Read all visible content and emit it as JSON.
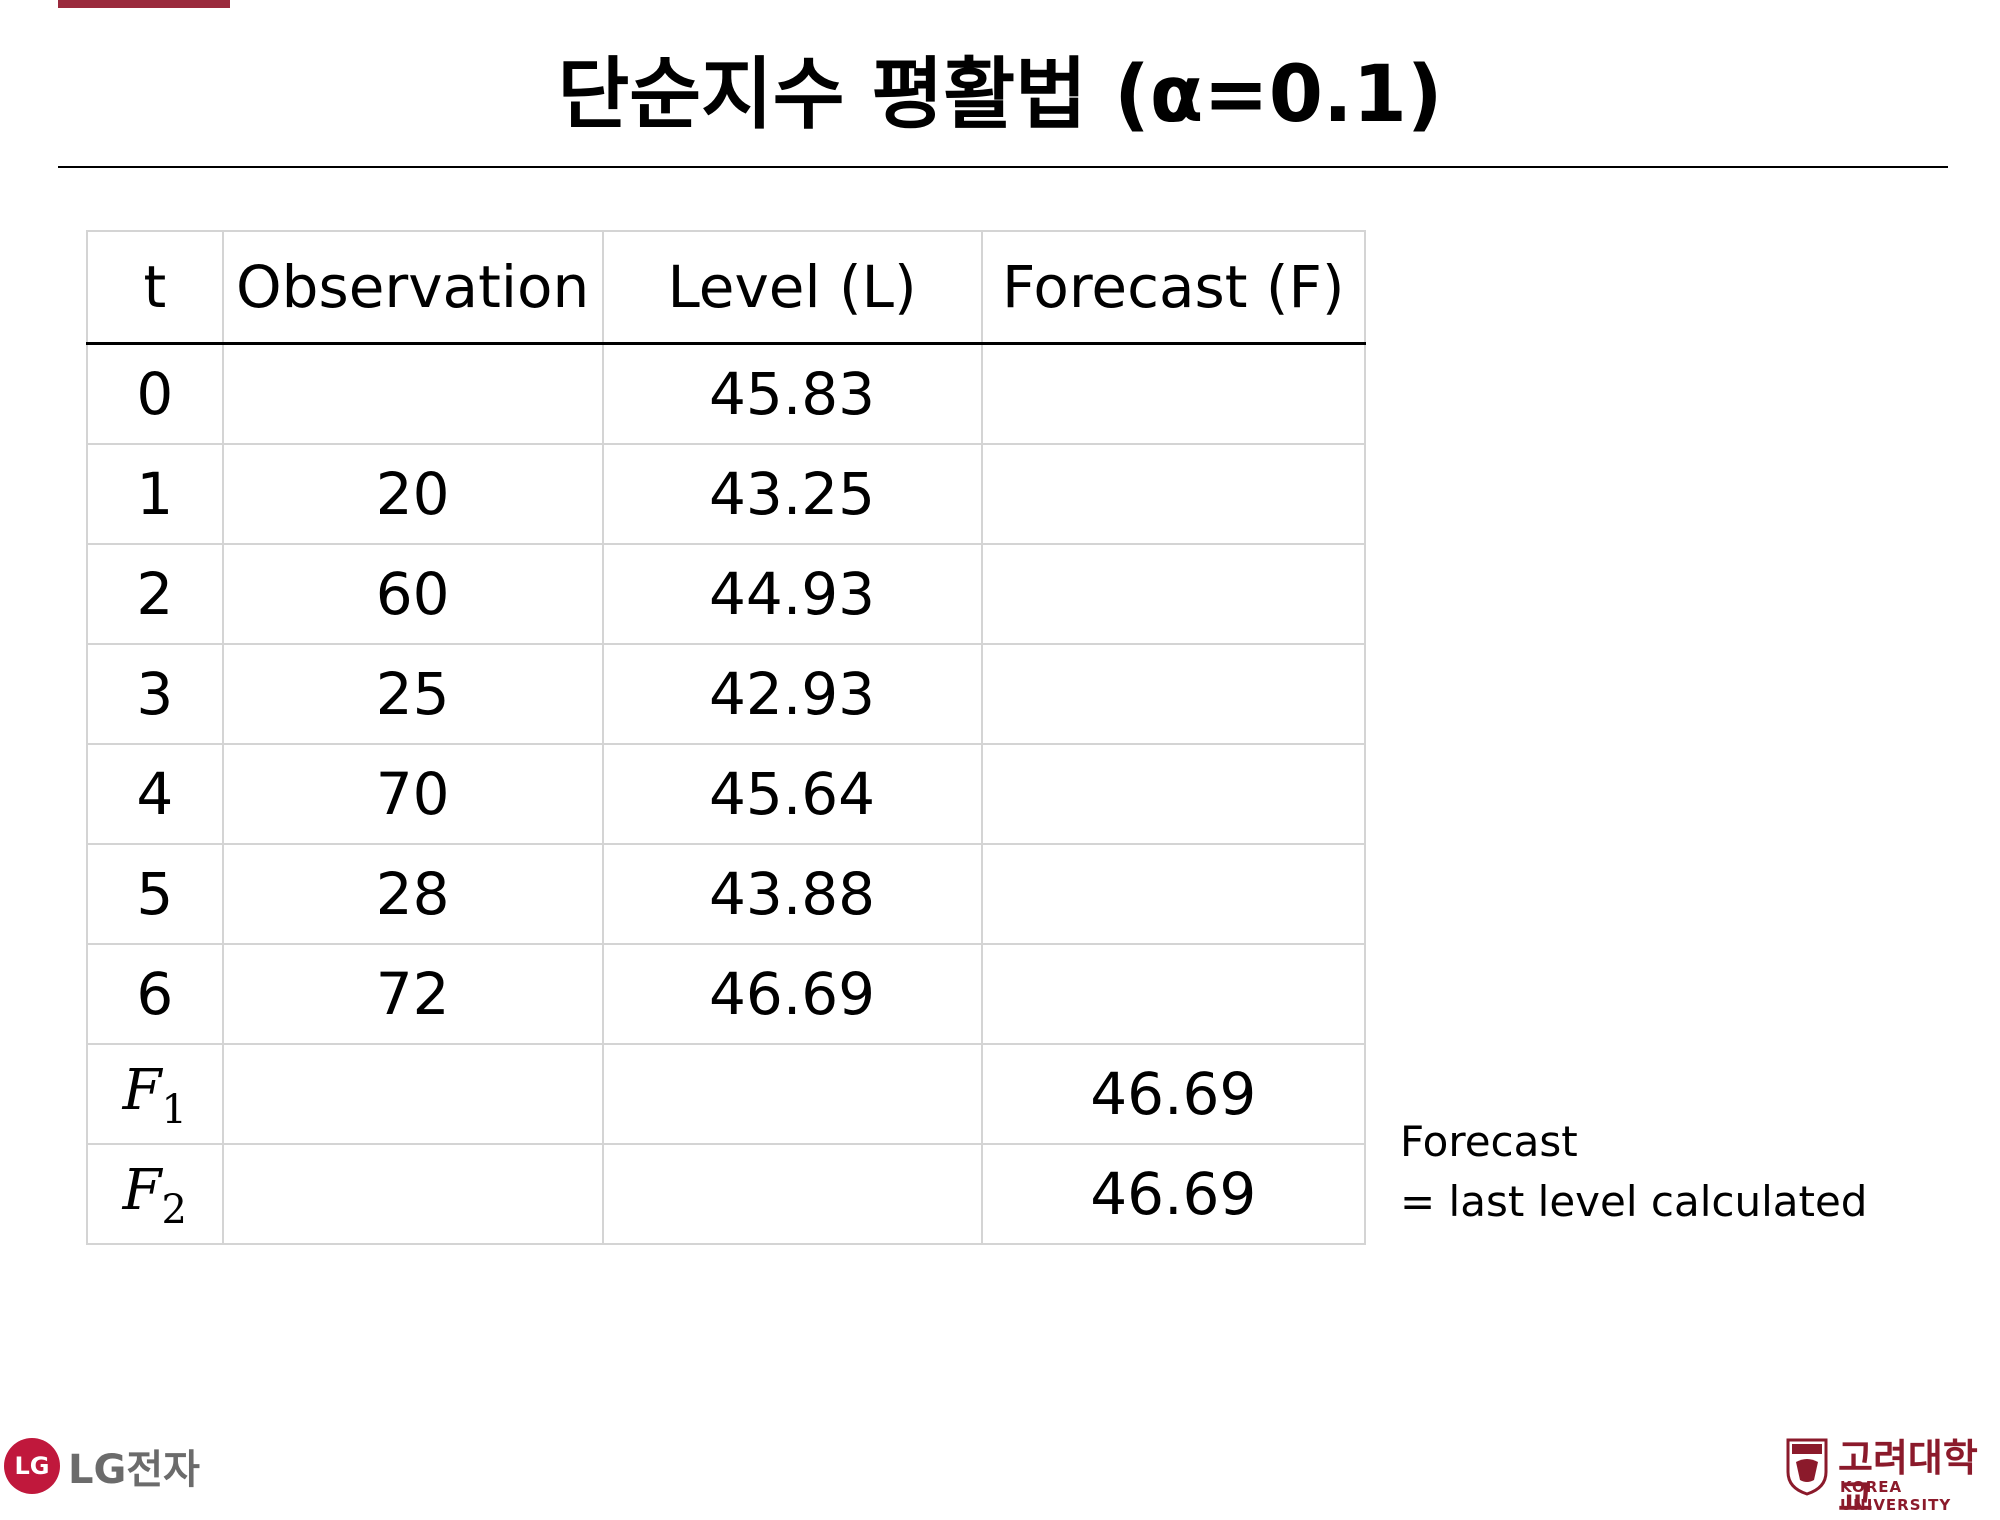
{
  "colors": {
    "accent": "#9a2a3d",
    "lg_red": "#c0183c",
    "ku_red": "#8b1a2b"
  },
  "title": "단순지수 평활법 (α=0.1)",
  "table": {
    "headers": [
      "t",
      "Observation",
      "Level (L)",
      "Forecast (F)"
    ],
    "rows": [
      {
        "t": "0",
        "observation": "",
        "level": "45.83",
        "forecast": ""
      },
      {
        "t": "1",
        "observation": "20",
        "level": "43.25",
        "forecast": ""
      },
      {
        "t": "2",
        "observation": "60",
        "level": "44.93",
        "forecast": ""
      },
      {
        "t": "3",
        "observation": "25",
        "level": "42.93",
        "forecast": ""
      },
      {
        "t": "4",
        "observation": "70",
        "level": "45.64",
        "forecast": ""
      },
      {
        "t": "5",
        "observation": "28",
        "level": "43.88",
        "forecast": ""
      },
      {
        "t": "6",
        "observation": "72",
        "level": "46.69",
        "forecast": ""
      }
    ],
    "forecast_rows": [
      {
        "symbol": "F",
        "subscript": "1",
        "observation": "",
        "level": "",
        "forecast": "46.69"
      },
      {
        "symbol": "F",
        "subscript": "2",
        "observation": "",
        "level": "",
        "forecast": "46.69"
      }
    ]
  },
  "note": {
    "line1": "Forecast",
    "line2": "= last level calculated"
  },
  "logos": {
    "lg": {
      "mark": "LG",
      "text": "LG전자"
    },
    "ku": {
      "korean": "고려대학교",
      "english": "KOREA UNIVERSITY"
    }
  }
}
